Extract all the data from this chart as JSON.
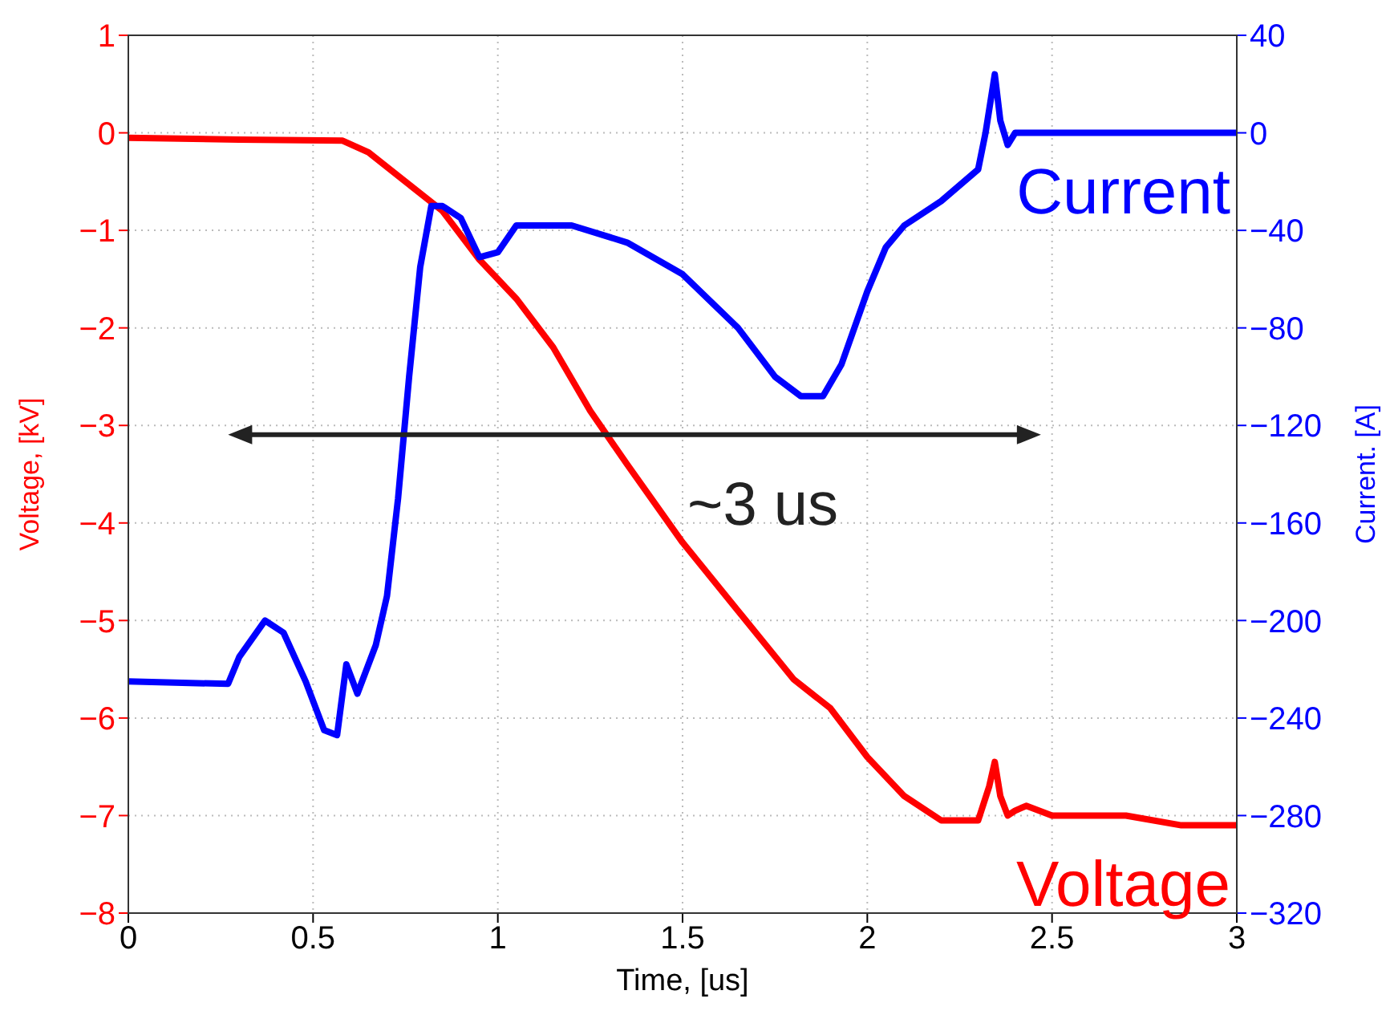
{
  "chart_data": {
    "type": "line",
    "xlabel": "Time, [us]",
    "ylabel": "Voltage, [kV]",
    "y2label": "Current. [A]",
    "xlim": [
      0,
      3
    ],
    "xticks": [
      0,
      0.5,
      1,
      1.5,
      2,
      2.5,
      3
    ],
    "ylim": [
      -8,
      1
    ],
    "yticks": [
      -8,
      -7,
      -6,
      -5,
      -4,
      -3,
      -2,
      -1,
      0,
      1
    ],
    "y2lim": [
      -320,
      40
    ],
    "y2ticks": [
      -320,
      -280,
      -240,
      -200,
      -160,
      -120,
      -80,
      -40,
      0,
      40
    ],
    "grid": true,
    "legend": false,
    "marker": "none",
    "line_style": "solid",
    "annotations": [
      "~3 us"
    ],
    "series": [
      {
        "name": "Voltage",
        "color": "#ff0000",
        "x": [
          0,
          0.3,
          0.58,
          0.65,
          0.75,
          0.85,
          0.95,
          1.05,
          1.15,
          1.25,
          1.35,
          1.5,
          1.65,
          1.8,
          1.9,
          2.0,
          2.1,
          2.2,
          2.3,
          2.33,
          2.345,
          2.36,
          2.38,
          2.4,
          2.43,
          2.5,
          2.7,
          2.85,
          3
        ],
        "values": [
          -0.05,
          -0.07,
          -0.08,
          -0.2,
          -0.5,
          -0.8,
          -1.3,
          -1.7,
          -2.2,
          -2.85,
          -3.4,
          -4.2,
          -4.9,
          -5.6,
          -5.9,
          -6.4,
          -6.8,
          -7.05,
          -7.05,
          -6.7,
          -6.45,
          -6.8,
          -7.0,
          -6.95,
          -6.9,
          -7.0,
          -7.0,
          -7.1,
          -7.1
        ]
      },
      {
        "name": "Current",
        "color": "#0000ff",
        "axis": "y2",
        "x": [
          0,
          0.27,
          0.3,
          0.37,
          0.42,
          0.48,
          0.53,
          0.565,
          0.59,
          0.62,
          0.67,
          0.7,
          0.73,
          0.76,
          0.79,
          0.82,
          0.85,
          0.9,
          0.95,
          1.0,
          1.05,
          1.2,
          1.35,
          1.5,
          1.65,
          1.75,
          1.82,
          1.88,
          1.93,
          2.0,
          2.05,
          2.1,
          2.2,
          2.3,
          2.32,
          2.345,
          2.36,
          2.38,
          2.4,
          2.6,
          3
        ],
        "values": [
          -225,
          -226,
          -215,
          -200,
          -205,
          -225,
          -245,
          -247,
          -218,
          -230,
          -210,
          -190,
          -150,
          -100,
          -55,
          -30,
          -30,
          -35,
          -51,
          -49,
          -38,
          -38,
          -45,
          -58,
          -80,
          -100,
          -108,
          -108,
          -95,
          -65,
          -47,
          -38,
          -28,
          -15,
          0,
          24,
          5,
          -5,
          0,
          0,
          0
        ]
      }
    ]
  }
}
